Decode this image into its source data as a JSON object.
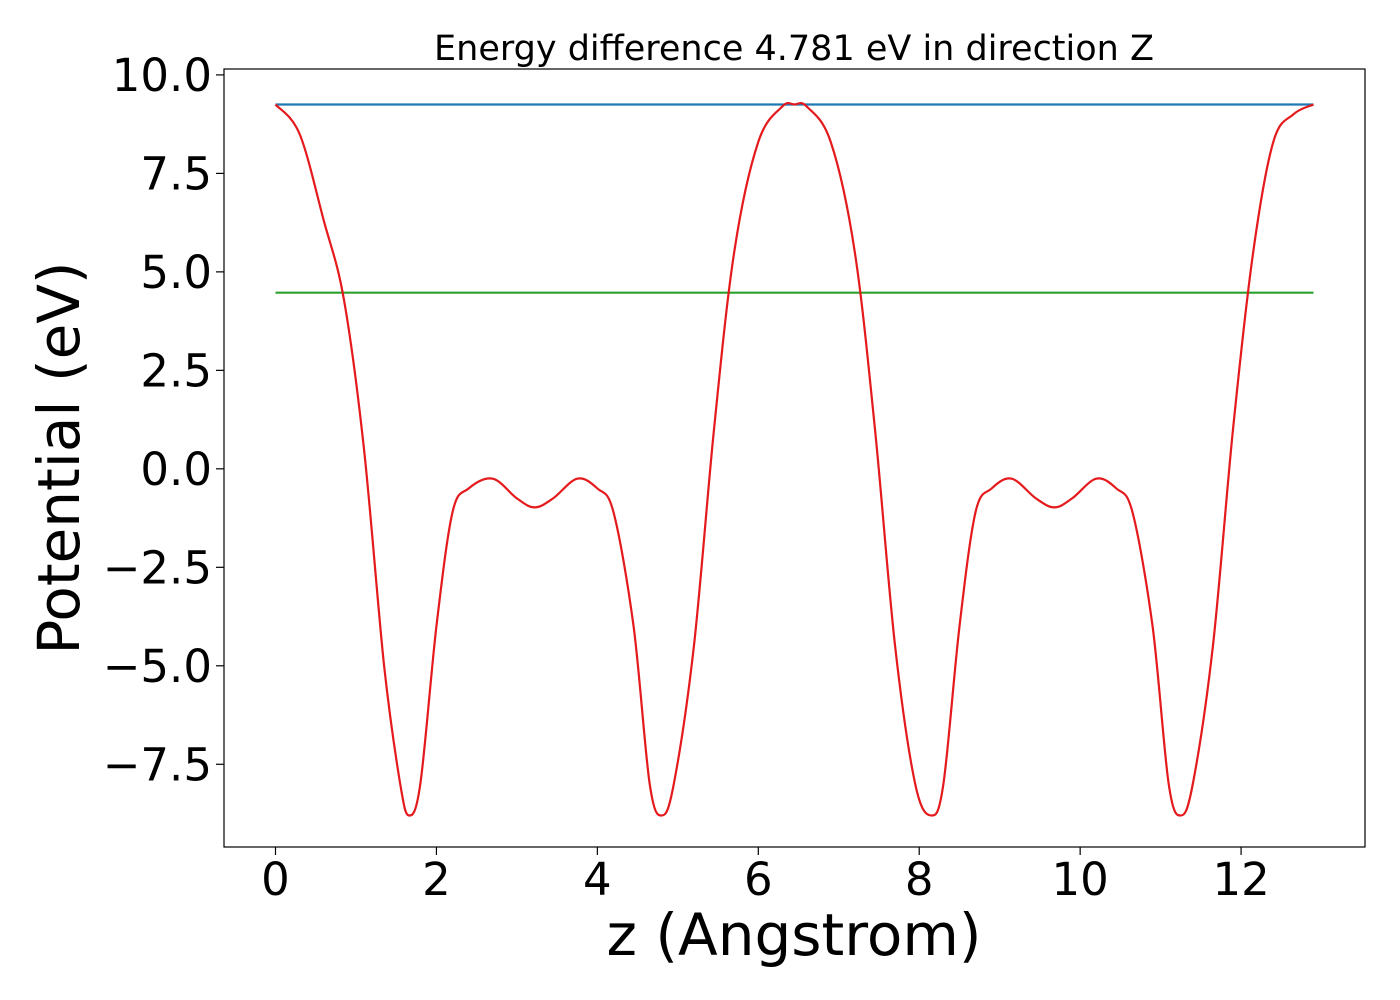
{
  "chart_data": {
    "type": "line",
    "title": "Energy difference 4.781 eV in direction Z",
    "xlabel": "z (Angstrom)",
    "ylabel": "Potential (eV)",
    "xlim": [
      -0.64,
      13.54
    ],
    "ylim": [
      -9.6,
      10.15
    ],
    "x_ticks": [
      0,
      2,
      4,
      6,
      8,
      10,
      12
    ],
    "x_tick_labels": [
      "0",
      "2",
      "4",
      "6",
      "8",
      "10",
      "12"
    ],
    "y_ticks": [
      10,
      7.5,
      5,
      2.5,
      0,
      -2.5,
      -5,
      -7.5
    ],
    "y_tick_labels": [
      "10.0",
      "7.5",
      "5.0",
      "2.5",
      "0.0",
      "−2.5",
      "−5.0",
      "−7.5"
    ],
    "grid": false,
    "series": [
      {
        "color": "#1f77b4",
        "x": [
          0,
          12.9
        ],
        "y": [
          9.25,
          9.25
        ]
      },
      {
        "color": "#2ca02c",
        "x": [
          0,
          12.9
        ],
        "y": [
          4.47,
          4.47
        ]
      },
      {
        "color": "#e41a1c",
        "x": [
          0,
          0.3,
          0.6,
          0.85,
          1.1,
          1.35,
          1.55,
          1.66,
          1.8,
          2.0,
          2.2,
          2.4,
          2.7,
          3.0,
          3.22,
          3.45,
          3.75,
          4.0,
          4.2,
          4.45,
          4.65,
          4.8,
          4.95,
          5.2,
          5.45,
          5.7,
          6.0,
          6.3,
          6.45,
          6.6,
          6.9,
          7.2,
          7.45,
          7.7,
          7.95,
          8.15,
          8.3,
          8.5,
          8.7,
          8.9,
          9.15,
          9.45,
          9.68,
          9.9,
          10.2,
          10.45,
          10.65,
          10.9,
          11.1,
          11.25,
          11.4,
          11.65,
          11.9,
          12.15,
          12.4,
          12.65,
          12.9
        ],
        "y": [
          9.25,
          8.5,
          6.3,
          4.3,
          0.5,
          -5.0,
          -8.0,
          -8.8,
          -8.0,
          -4.0,
          -1.1,
          -0.5,
          -0.25,
          -0.75,
          -0.98,
          -0.75,
          -0.25,
          -0.5,
          -1.1,
          -4.0,
          -8.0,
          -8.8,
          -8.0,
          -4.5,
          1.0,
          5.5,
          8.3,
          9.2,
          9.25,
          9.2,
          8.3,
          5.5,
          1.0,
          -4.5,
          -8.0,
          -8.8,
          -8.0,
          -4.0,
          -1.1,
          -0.5,
          -0.25,
          -0.75,
          -0.98,
          -0.75,
          -0.25,
          -0.5,
          -1.1,
          -4.0,
          -8.0,
          -8.8,
          -8.0,
          -4.5,
          1.0,
          5.5,
          8.3,
          9.0,
          9.25
        ]
      }
    ]
  }
}
